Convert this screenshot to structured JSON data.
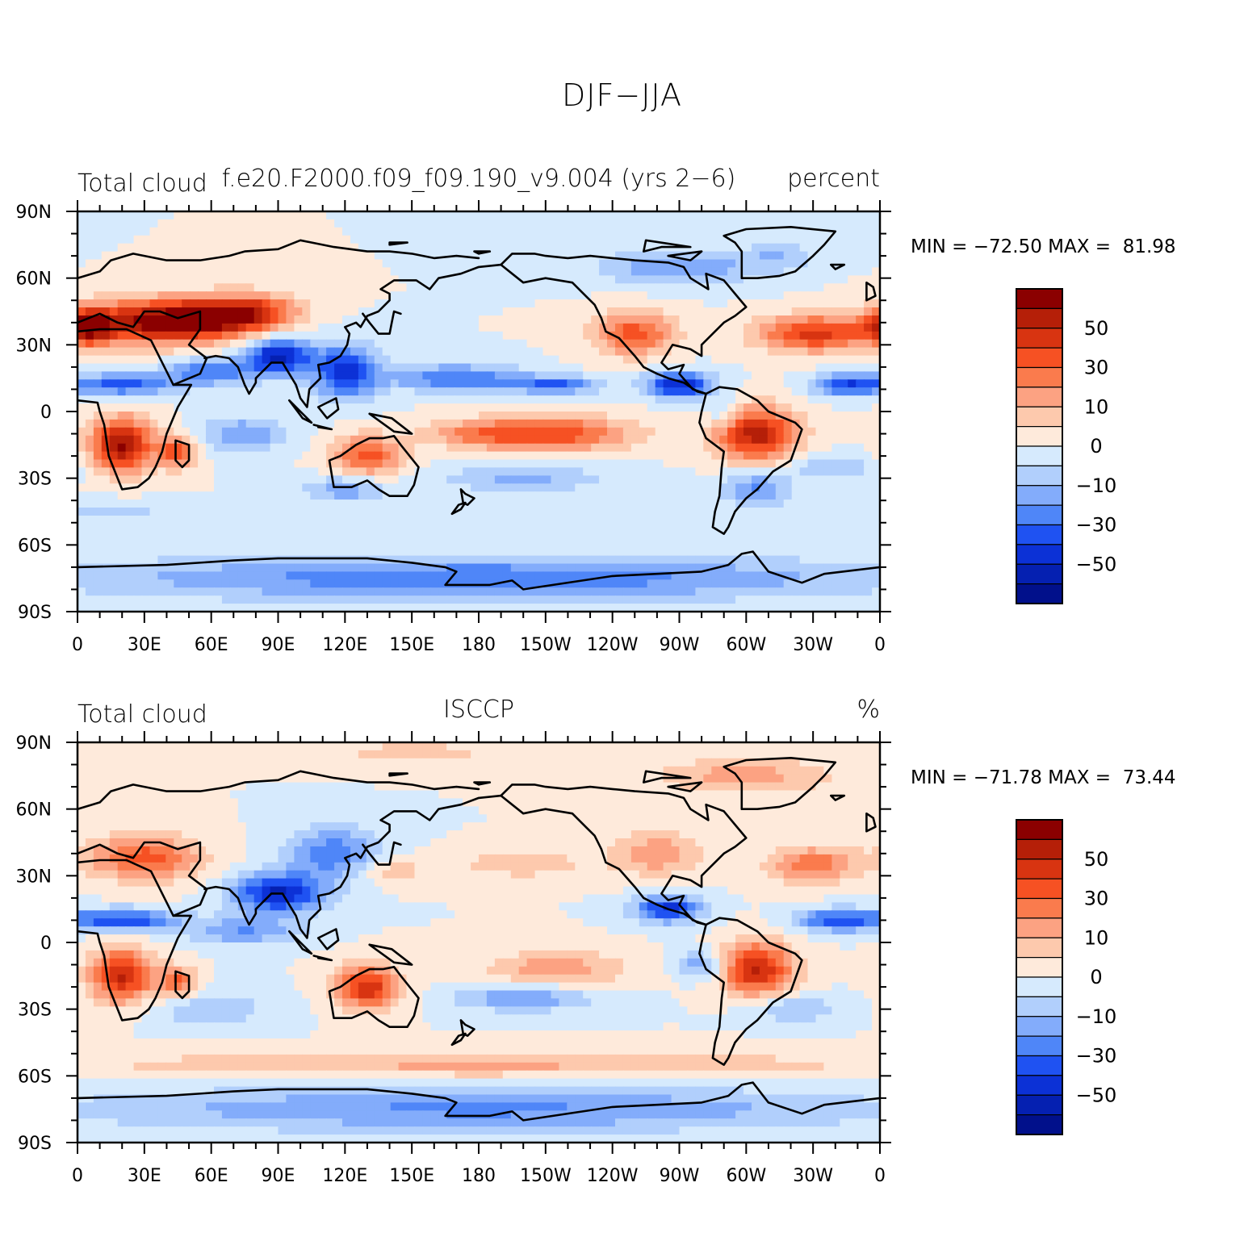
{
  "title": "DJF−JJA",
  "panels": [
    {
      "left_title": "Total cloud",
      "center_title": "f.e20.F2000.f09_f09.190_v9.004 (yrs 2−6)",
      "right_title": "percent",
      "min_label": "MIN = −72.50",
      "max_label": "MAX =  81.98"
    },
    {
      "left_title": "Total cloud",
      "center_title": "ISCCP",
      "right_title": "%",
      "min_label": "MIN = −71.78",
      "max_label": "MAX =  73.44"
    }
  ],
  "axes": {
    "lat_labels": [
      "90N",
      "60N",
      "30N",
      "0",
      "30S",
      "60S",
      "90S"
    ],
    "lon_labels": [
      "0",
      "30E",
      "60E",
      "90E",
      "120E",
      "150E",
      "180",
      "150W",
      "120W",
      "90W",
      "60W",
      "30W",
      "0"
    ]
  },
  "colorbar": {
    "labels": [
      "50",
      "30",
      "10",
      "0",
      "−10",
      "−30",
      "−50"
    ],
    "colors": [
      "#8b0000",
      "#b51f08",
      "#d83411",
      "#f65123",
      "#fa7b4d",
      "#fca282",
      "#fdc9ad",
      "#feeadb",
      "#d6eafd",
      "#b1cffc",
      "#83acfb",
      "#4f86f8",
      "#1f52f2",
      "#0c31d6",
      "#0520b1",
      "#01108b"
    ]
  }
}
